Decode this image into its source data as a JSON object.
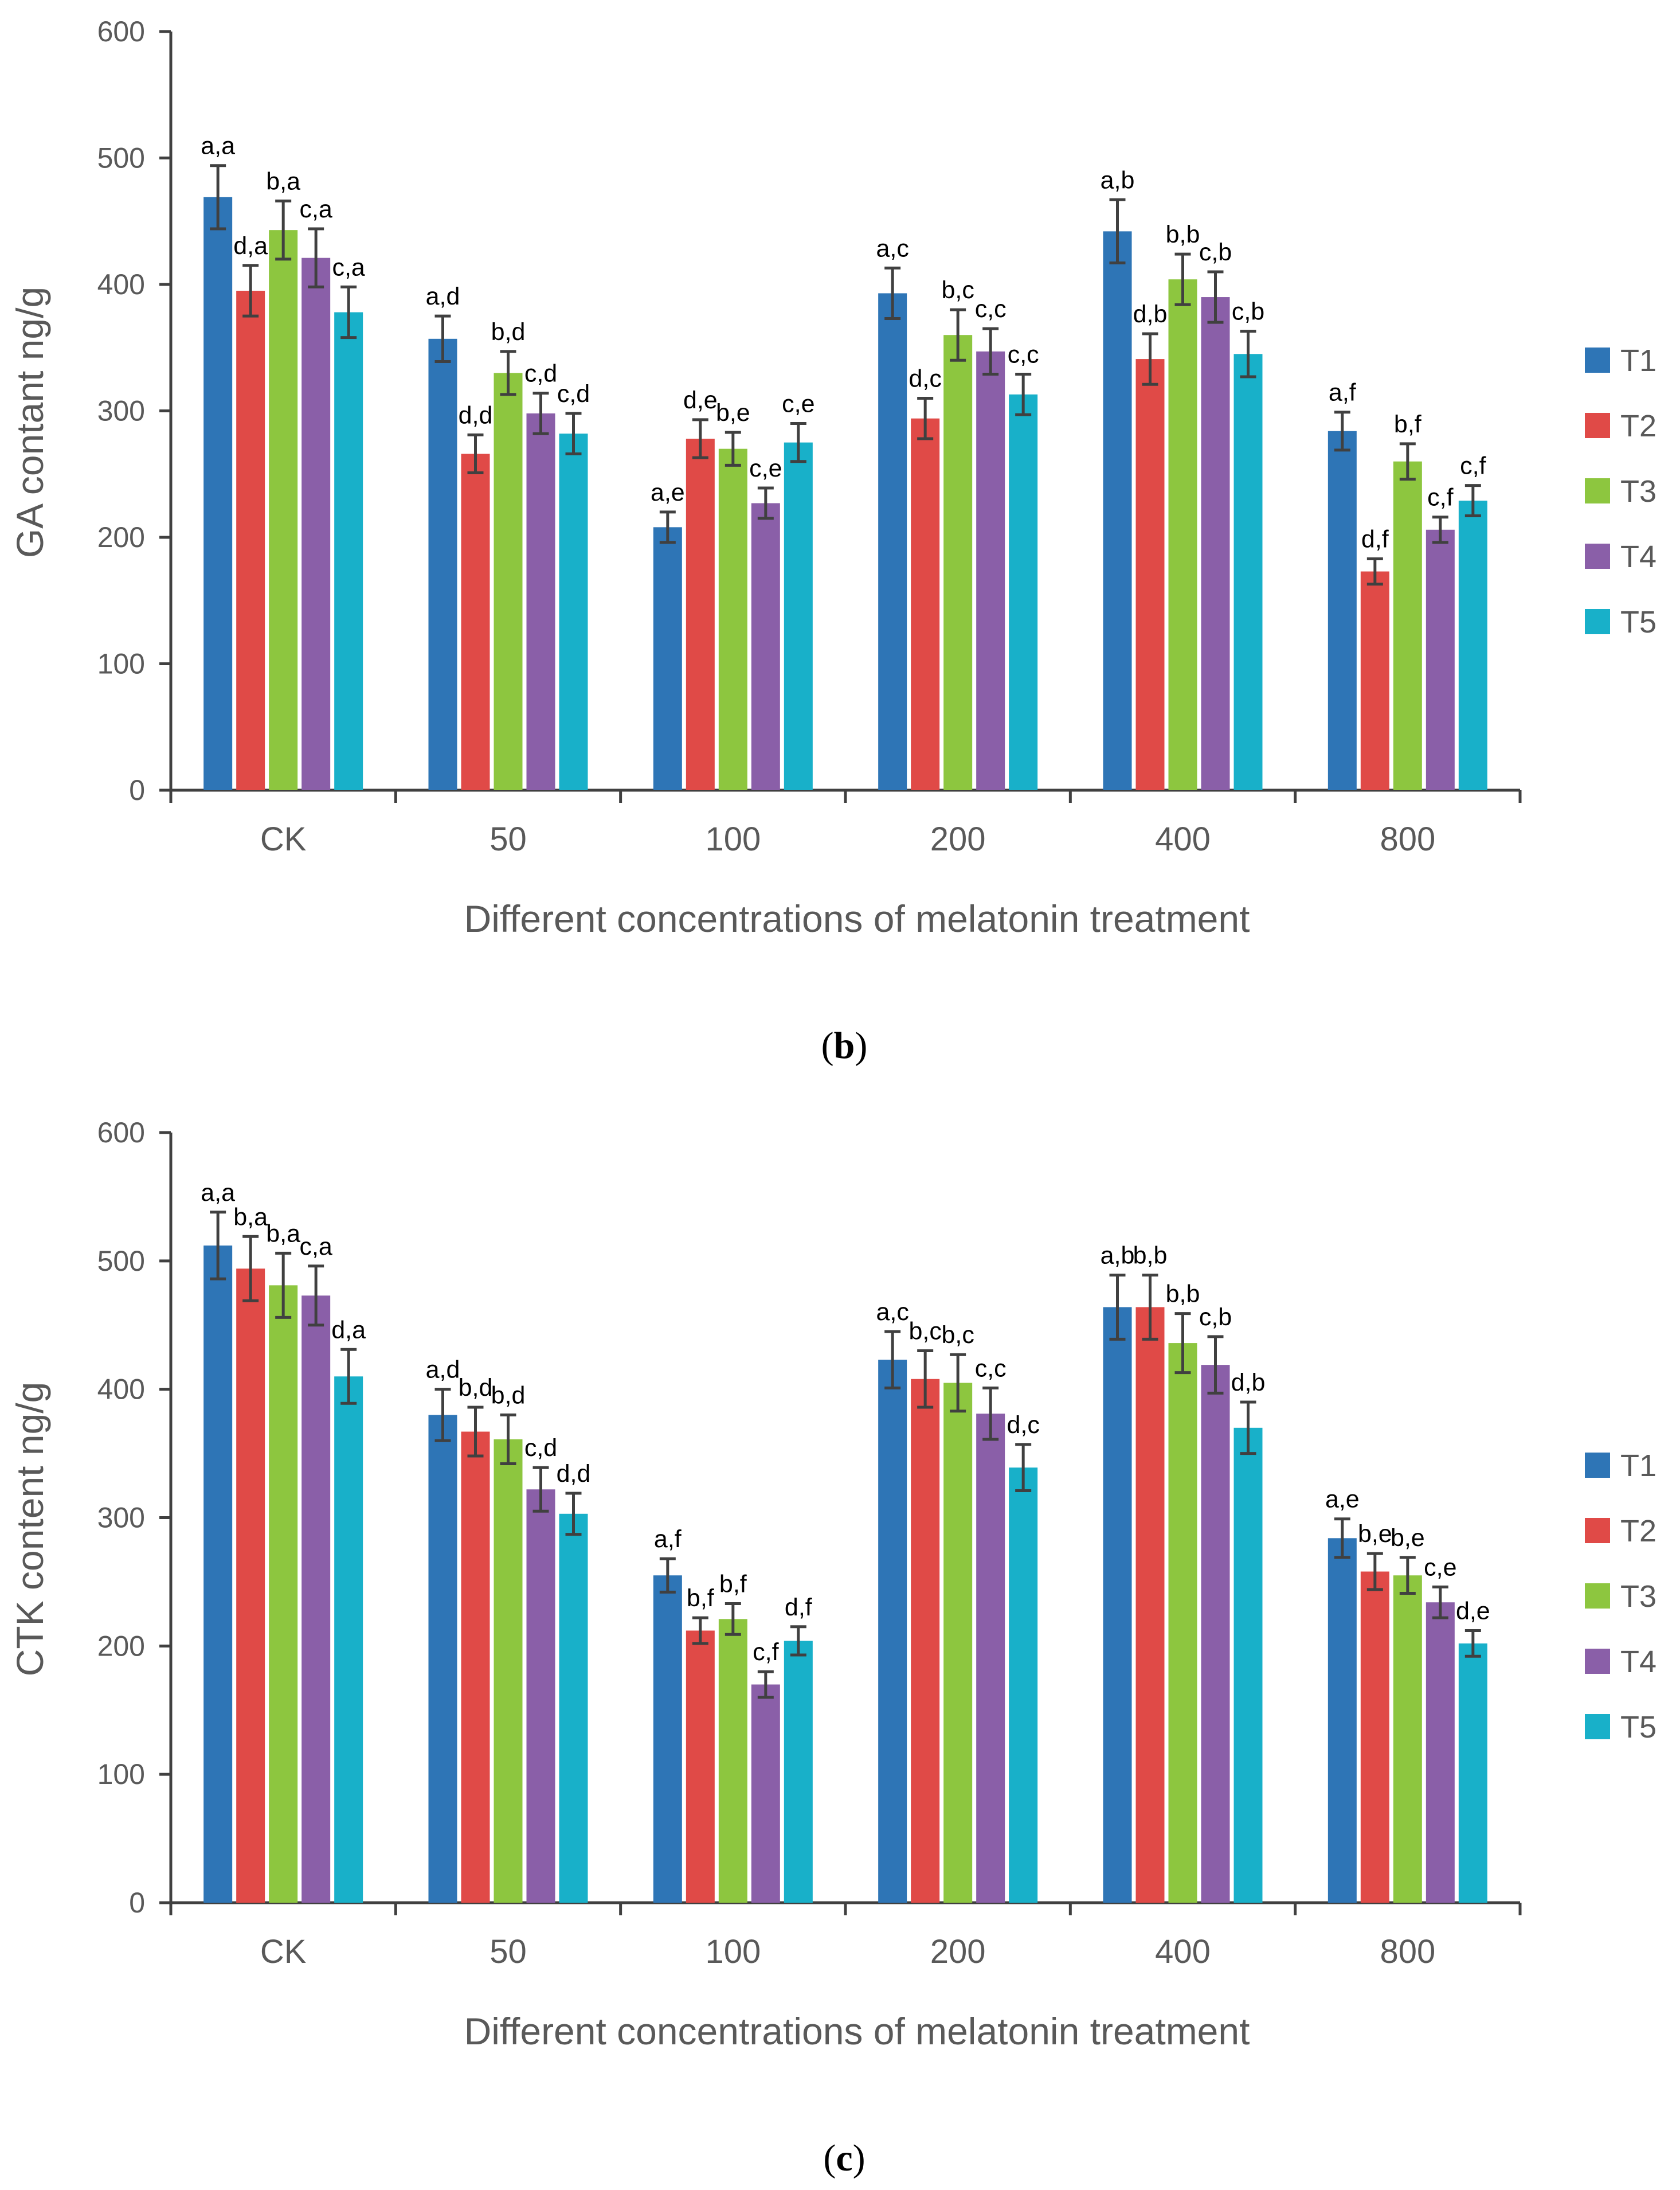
{
  "colors": {
    "T1": "#2E75B6",
    "T2": "#E04A47",
    "T3": "#8DC63F",
    "T4": "#8A5FA8",
    "T5": "#18B0C9",
    "axis": "#404040",
    "error": "#404040"
  },
  "chart_data": [
    {
      "type": "bar",
      "panel": "b",
      "caption_open": "(",
      "caption_letter": "b",
      "caption_close": ")",
      "ylabel": "GA contant ng/g",
      "xlabel": "Different concentrations of melatonin treatment",
      "ylim": [
        0,
        600
      ],
      "yticks": [
        0,
        100,
        200,
        300,
        400,
        500,
        600
      ],
      "ytick_labels": [
        "0",
        "100",
        "200",
        "300",
        "400",
        "500",
        "600"
      ],
      "categories": [
        "CK",
        "50",
        "100",
        "200",
        "400",
        "800"
      ],
      "legend_position": "right",
      "series": [
        {
          "name": "T1",
          "values": [
            469,
            357,
            208,
            393,
            442,
            284
          ],
          "errors": [
            25,
            18,
            12,
            20,
            25,
            15
          ],
          "labels": [
            "a,a",
            "a,d",
            "a,e",
            "a,c",
            "a,b",
            "a,f"
          ]
        },
        {
          "name": "T2",
          "values": [
            395,
            266,
            278,
            294,
            341,
            173
          ],
          "errors": [
            20,
            15,
            15,
            16,
            20,
            10
          ],
          "labels": [
            "d,a",
            "d,d",
            "d,e",
            "d,c",
            "d,b",
            "d,f"
          ]
        },
        {
          "name": "T3",
          "values": [
            443,
            330,
            270,
            360,
            404,
            260
          ],
          "errors": [
            23,
            17,
            13,
            20,
            20,
            14
          ],
          "labels": [
            "b,a",
            "b,d",
            "b,e",
            "b,c",
            "b,b",
            "b,f"
          ]
        },
        {
          "name": "T4",
          "values": [
            421,
            298,
            227,
            347,
            390,
            206
          ],
          "errors": [
            23,
            16,
            12,
            18,
            20,
            10
          ],
          "labels": [
            "c,a",
            "c,d",
            "c,e",
            "c,c",
            "c,b",
            "c,f"
          ]
        },
        {
          "name": "T5",
          "values": [
            378,
            282,
            275,
            313,
            345,
            229
          ],
          "errors": [
            20,
            16,
            15,
            16,
            18,
            12
          ],
          "labels": [
            "c,a",
            "c,d",
            "c,e",
            "c,c",
            "c,b",
            "c,f"
          ]
        }
      ]
    },
    {
      "type": "bar",
      "panel": "c",
      "caption_open": "(",
      "caption_letter": "c",
      "caption_close": ")",
      "ylabel": "CTK content ng/g",
      "xlabel": "Different concentrations of melatonin treatment",
      "ylim": [
        0,
        600
      ],
      "yticks": [
        0,
        100,
        200,
        300,
        400,
        500,
        600
      ],
      "ytick_labels": [
        "0",
        "100",
        "200",
        "300",
        "400",
        "500",
        "600"
      ],
      "categories": [
        "CK",
        "50",
        "100",
        "200",
        "400",
        "800"
      ],
      "legend_position": "right",
      "series": [
        {
          "name": "T1",
          "values": [
            512,
            380,
            255,
            423,
            464,
            284
          ],
          "errors": [
            26,
            20,
            13,
            22,
            25,
            15
          ],
          "labels": [
            "a,a",
            "a,d",
            "a,f",
            "a,c",
            "a,b",
            "a,e"
          ]
        },
        {
          "name": "T2",
          "values": [
            494,
            367,
            212,
            408,
            464,
            258
          ],
          "errors": [
            25,
            19,
            10,
            22,
            25,
            14
          ],
          "labels": [
            "b,a",
            "b,d",
            "b,f",
            "b,c",
            "b,b",
            "b,e"
          ]
        },
        {
          "name": "T3",
          "values": [
            481,
            361,
            221,
            405,
            436,
            255
          ],
          "errors": [
            25,
            19,
            12,
            22,
            23,
            14
          ],
          "labels": [
            "b,a",
            "b,d",
            "b,f",
            "b,c",
            "b,b",
            "b,e"
          ]
        },
        {
          "name": "T4",
          "values": [
            473,
            322,
            170,
            381,
            419,
            234
          ],
          "errors": [
            23,
            17,
            10,
            20,
            22,
            12
          ],
          "labels": [
            "c,a",
            "c,d",
            "c,f",
            "c,c",
            "c,b",
            "c,e"
          ]
        },
        {
          "name": "T5",
          "values": [
            410,
            303,
            204,
            339,
            370,
            202
          ],
          "errors": [
            21,
            16,
            11,
            18,
            20,
            10
          ],
          "labels": [
            "d,a",
            "d,d",
            "d,f",
            "d,c",
            "d,b",
            "d,e"
          ]
        }
      ]
    }
  ]
}
